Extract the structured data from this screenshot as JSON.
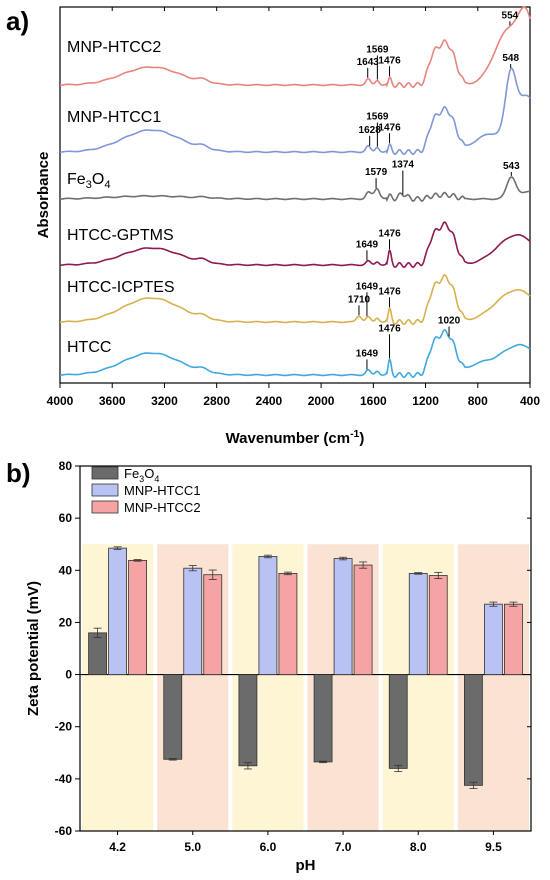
{
  "chart_data": [
    {
      "panel": "a)",
      "type": "line",
      "xlabel": "Wavenumber (cm",
      "xlabel_sup": "-1",
      "xlabel_end": ")",
      "ylabel": "Absorbance",
      "xlim": [
        4000,
        400
      ],
      "x_ticks": [
        4000,
        3600,
        3200,
        2800,
        2400,
        2000,
        1600,
        1200,
        800,
        400
      ],
      "series": [
        {
          "name": "MNP-HTCC2",
          "color": "#e8847f",
          "peaks": [
            {
              "x": 1643,
              "label": "1643"
            },
            {
              "x": 1569,
              "label": "1569"
            },
            {
              "x": 1476,
              "label": "1476"
            },
            {
              "x": 554,
              "label": "554"
            }
          ]
        },
        {
          "name": "MNP-HTCC1",
          "color": "#7f96d9",
          "peaks": [
            {
              "x": 1628,
              "label": "1628"
            },
            {
              "x": 1569,
              "label": "1569"
            },
            {
              "x": 1476,
              "label": "1476"
            },
            {
              "x": 548,
              "label": "548"
            }
          ]
        },
        {
          "name": "Fe",
          "name_sub": "3",
          "name_mid": "O",
          "name_sub2": "4",
          "color": "#6f6f6f",
          "peaks": [
            {
              "x": 1579,
              "label": "1579"
            },
            {
              "x": 1374,
              "label": "1374"
            },
            {
              "x": 543,
              "label": "543"
            }
          ]
        },
        {
          "name": "HTCC-GPTMS",
          "color": "#8e1a52",
          "peaks": [
            {
              "x": 1649,
              "label": "1649"
            },
            {
              "x": 1476,
              "label": "1476"
            }
          ]
        },
        {
          "name": "HTCC-ICPTES",
          "color": "#d8b14e",
          "peaks": [
            {
              "x": 1710,
              "label": "1710"
            },
            {
              "x": 1649,
              "label": "1649"
            },
            {
              "x": 1476,
              "label": "1476"
            }
          ]
        },
        {
          "name": "HTCC",
          "color": "#40a8dc",
          "peaks": [
            {
              "x": 1649,
              "label": "1649"
            },
            {
              "x": 1476,
              "label": "1476"
            },
            {
              "x": 1020,
              "label": "1020"
            }
          ]
        }
      ]
    },
    {
      "panel": "b)",
      "type": "bar",
      "xlabel": "pH",
      "ylabel": "Zeta potential (mV)",
      "ylim": [
        -60,
        80
      ],
      "y_ticks": [
        -60,
        -40,
        -20,
        0,
        20,
        40,
        60,
        80
      ],
      "categories": [
        "4.2",
        "5.0",
        "6.0",
        "7.0",
        "8.0",
        "9.5"
      ],
      "background_colors": [
        "#fdf5d3",
        "#fbe3d3"
      ],
      "series": [
        {
          "name": "Fe",
          "name_sub": "3",
          "name_mid": "O",
          "name_sub2": "4",
          "color": "#6b6b6b",
          "values": [
            16,
            -32.5,
            -35,
            -33.5,
            -36,
            -42.5
          ],
          "errors": [
            1.8,
            0.3,
            1.2,
            0.3,
            1.2,
            1.2
          ]
        },
        {
          "name": "MNP-HTCC1",
          "color": "#b8c3f4",
          "values": [
            48.5,
            40.8,
            45.3,
            44.5,
            38.8,
            27
          ],
          "errors": [
            0.5,
            1.0,
            0.5,
            0.5,
            0.3,
            0.8
          ]
        },
        {
          "name": "MNP-HTCC2",
          "color": "#f5a3a3",
          "values": [
            43.8,
            38.3,
            38.8,
            42,
            38,
            27
          ],
          "errors": [
            0.3,
            1.8,
            0.5,
            1.2,
            1.2,
            0.8
          ]
        }
      ]
    }
  ]
}
